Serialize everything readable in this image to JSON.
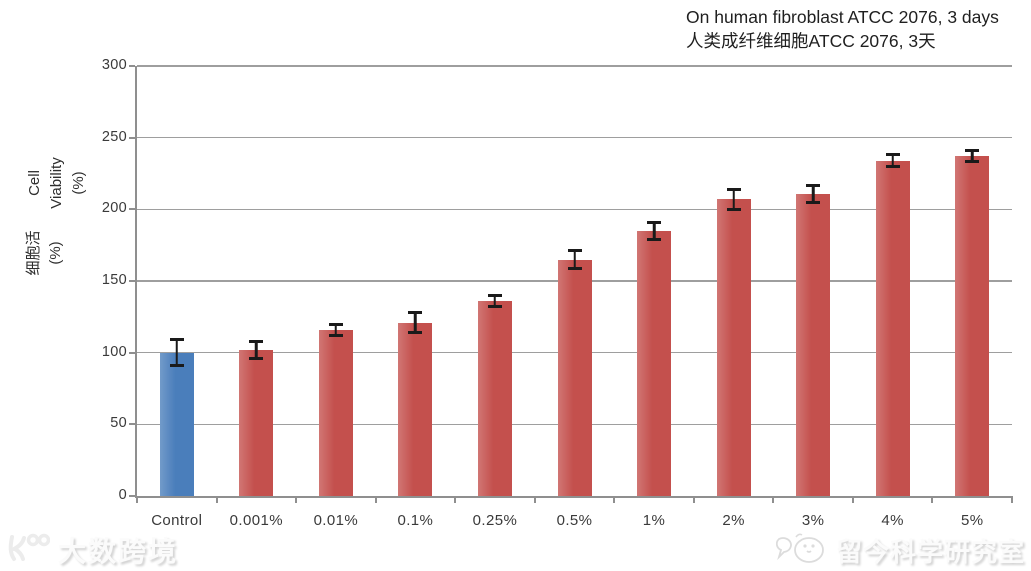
{
  "header": {
    "title_en": "On human fibroblast ATCC 2076, 3 days",
    "title_zh": "人类成纤维细胞ATCC 2076, 3天"
  },
  "y_axis": {
    "en_lines": [
      "Cell",
      "Viability",
      "(%)"
    ],
    "zh_lines": [
      "细胞活",
      "(%)"
    ]
  },
  "watermarks": {
    "bottom_left": "大数跨境",
    "bottom_right": "留今科学研究室"
  },
  "chart_data": {
    "type": "bar",
    "title_en": "On human fibroblast ATCC 2076, 3 days",
    "title_zh": "人类成纤维细胞ATCC 2076, 3天",
    "ylabel_en": "Cell Viability (%)",
    "ylabel_zh": "细胞活 (%)",
    "categories": [
      "Control",
      "0.001%",
      "0.01%",
      "0.1%",
      "0.25%",
      "0.5%",
      "1%",
      "2%",
      "3%",
      "4%",
      "5%"
    ],
    "values": [
      100,
      102,
      116,
      121,
      136,
      165,
      185,
      207,
      211,
      234,
      237
    ],
    "error_bars": [
      10,
      7,
      5,
      8,
      5,
      7,
      7,
      8,
      7,
      5,
      5
    ],
    "ylim": [
      0,
      300
    ],
    "yticks": [
      0,
      50,
      100,
      150,
      200,
      250,
      300
    ],
    "grid": true,
    "legend_position": "none",
    "colors": {
      "control_bar": "#4A7EBB",
      "treatment_bar": "#C4504D",
      "error_bar": "#1a1a1a",
      "gridline": "#9e9e9e",
      "axis": "#8f8f8f",
      "tick_text": "#3a3a3a",
      "title_text": "#1f1f1f"
    }
  }
}
